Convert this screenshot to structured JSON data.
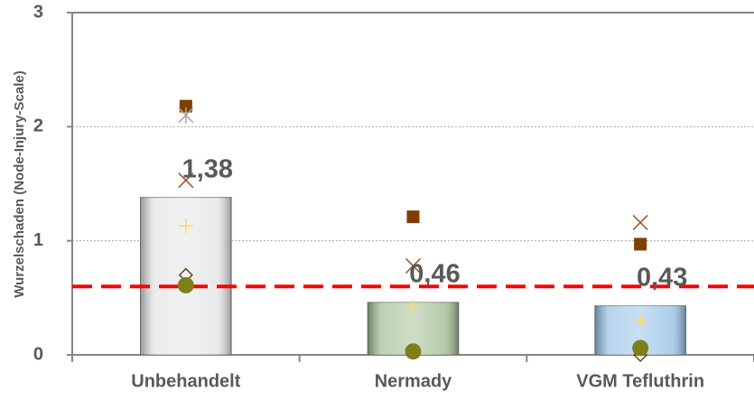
{
  "chart_data": {
    "type": "bar",
    "y_label": "Wurzelschaden (Node-Injury-Scale)",
    "categories": [
      "Unbehandelt",
      "Nermady",
      "VGM Tefluthrin"
    ],
    "values": [
      1.38,
      0.46,
      0.43
    ],
    "value_labels": [
      "1,38",
      "0,46",
      "0,43"
    ],
    "colors": [
      "#e6e6e6",
      "#a8c29a",
      "#9ec6e8"
    ],
    "ylim": [
      0,
      3
    ],
    "yticks": [
      0,
      1,
      2,
      3
    ],
    "grid": true,
    "threshold": {
      "value": 0.6,
      "color": "#ff0000"
    },
    "points": [
      {
        "marker": "square",
        "color": "#7f3f00",
        "values": [
          2.18,
          1.21,
          0.97
        ]
      },
      {
        "marker": "x",
        "color": "#a0522d",
        "values": [
          1.53,
          0.78,
          1.16
        ]
      },
      {
        "marker": "asterisk",
        "color": "#a6a6a6",
        "values": [
          2.1,
          null,
          null
        ]
      },
      {
        "marker": "plus",
        "color": "#ffd966",
        "values": [
          1.13,
          0.42,
          0.3
        ]
      },
      {
        "marker": "diamond",
        "color": "#5a4a1a",
        "values": [
          0.7,
          0.02,
          0.0
        ]
      },
      {
        "marker": "circle",
        "color": "#7f7f1a",
        "values": [
          0.61,
          0.03,
          0.06
        ]
      }
    ]
  }
}
